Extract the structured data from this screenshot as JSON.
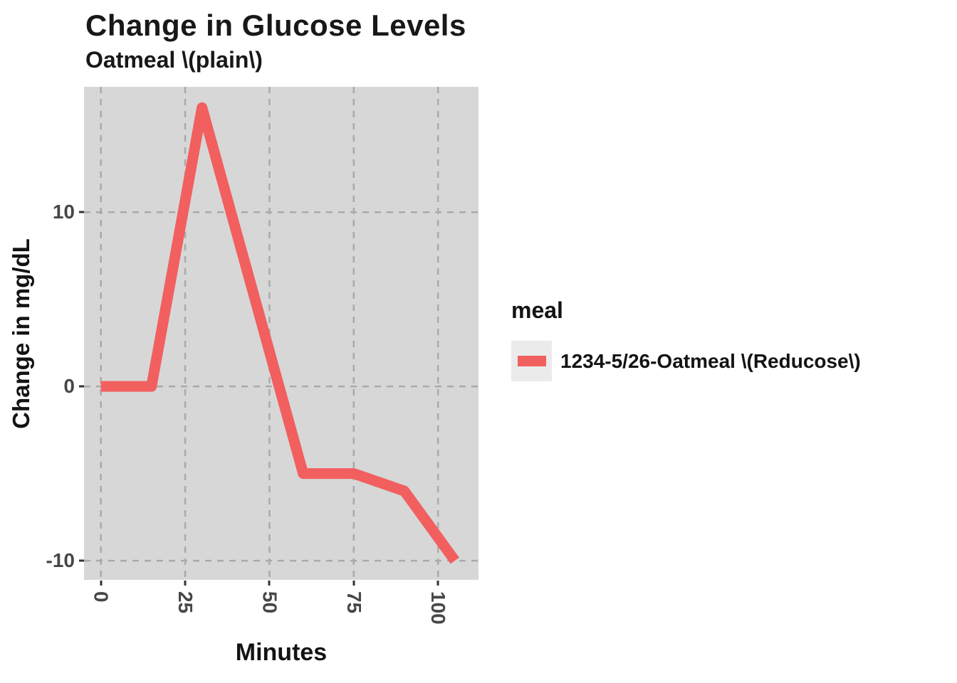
{
  "header": {
    "title": "Change in Glucose Levels",
    "subtitle": "Oatmeal \\(plain\\)"
  },
  "chart_data": {
    "type": "line",
    "title": "Change in Glucose Levels",
    "subtitle": "Oatmeal \\(plain\\)",
    "xlabel": "Minutes",
    "ylabel": "Change in mg/dL",
    "x_ticks": [
      0,
      25,
      50,
      75,
      100
    ],
    "y_ticks": [
      10,
      0,
      -10
    ],
    "xlim": [
      -5,
      112
    ],
    "ylim": [
      -11.1,
      17.2
    ],
    "grid": "dashed",
    "legend_position": "right",
    "panel_bg": "#D7D7D7",
    "grid_color": "#AAAAAA",
    "series": [
      {
        "name": "1234-5/26-Oatmeal \\(Reducose\\)",
        "color": "#F25F5F",
        "x": [
          0,
          15,
          30,
          60,
          75,
          90,
          105
        ],
        "y": [
          0,
          0,
          16,
          -5,
          -5,
          -6,
          -10
        ]
      }
    ]
  },
  "legend": {
    "title": "meal",
    "entries": [
      {
        "label": "1234-5/26-Oatmeal \\(Reducose\\)",
        "color": "#F25F5F"
      }
    ]
  },
  "colors": {
    "line": "#F25F5F",
    "panel_bg": "#D7D7D7",
    "grid": "#AAAAAA",
    "tick_text": "#474747",
    "text": "#131313"
  }
}
